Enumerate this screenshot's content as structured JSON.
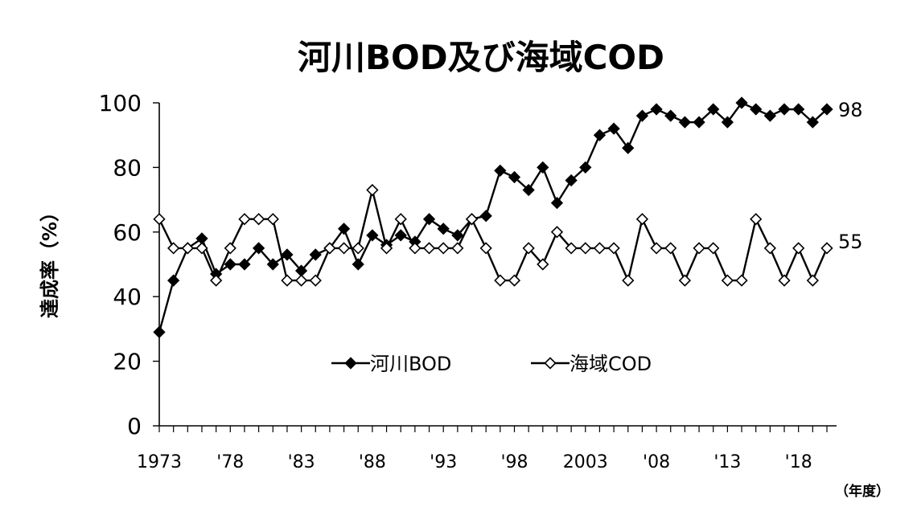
{
  "chart_data": {
    "type": "line",
    "title": "河川BOD及び海域COD",
    "ylabel": "達成率（%）",
    "xunit": "（年度）",
    "ylim": [
      0,
      100
    ],
    "yticks": [
      "0",
      "20",
      "40",
      "60",
      "80",
      "100"
    ],
    "xticks": [
      {
        "year": 1973,
        "label": "1973"
      },
      {
        "year": 1978,
        "label": "'78"
      },
      {
        "year": 1983,
        "label": "'83"
      },
      {
        "year": 1988,
        "label": "'88"
      },
      {
        "year": 1993,
        "label": "'93"
      },
      {
        "year": 1998,
        "label": "'98"
      },
      {
        "year": 2003,
        "label": "2003"
      },
      {
        "year": 2008,
        "label": "'08"
      },
      {
        "year": 2013,
        "label": "'13"
      },
      {
        "year": 2018,
        "label": "'18"
      }
    ],
    "x": [
      1973,
      1974,
      1975,
      1976,
      1977,
      1978,
      1979,
      1980,
      1981,
      1982,
      1983,
      1984,
      1985,
      1986,
      1987,
      1988,
      1989,
      1990,
      1991,
      1992,
      1993,
      1994,
      1995,
      1996,
      1997,
      1998,
      1999,
      2000,
      2001,
      2002,
      2003,
      2004,
      2005,
      2006,
      2007,
      2008,
      2009,
      2010,
      2011,
      2012,
      2013,
      2014,
      2015,
      2016,
      2017,
      2018,
      2019,
      2020
    ],
    "grid": false,
    "legend_position": "bottom-center",
    "series": [
      {
        "name": "河川BOD",
        "marker": "filled-diamond",
        "color": "#000000",
        "end_label": "98",
        "values": [
          29,
          45,
          55,
          58,
          47,
          50,
          50,
          55,
          50,
          53,
          48,
          53,
          55,
          61,
          50,
          59,
          56,
          59,
          57,
          64,
          61,
          59,
          64,
          65,
          79,
          77,
          73,
          80,
          69,
          76,
          80,
          90,
          92,
          86,
          96,
          98,
          96,
          94,
          94,
          98,
          94,
          100,
          98,
          96,
          98,
          98,
          94,
          98
        ]
      },
      {
        "name": "海域COD",
        "marker": "open-diamond",
        "color": "#000000",
        "end_label": "55",
        "values": [
          64,
          55,
          55,
          55,
          45,
          55,
          64,
          64,
          64,
          45,
          45,
          45,
          55,
          55,
          55,
          73,
          55,
          64,
          55,
          55,
          55,
          55,
          64,
          55,
          45,
          45,
          55,
          50,
          60,
          55,
          55,
          55,
          55,
          45,
          64,
          55,
          55,
          45,
          55,
          55,
          45,
          45,
          64,
          55,
          45,
          55,
          45,
          55
        ]
      }
    ]
  }
}
